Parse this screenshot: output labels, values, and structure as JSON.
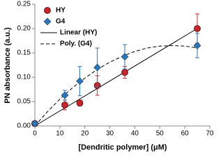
{
  "chart_data": {
    "type": "scatter",
    "x_label": "[Dendritic polymer] (μM)",
    "y_label": "PN absorbance (a.u.)",
    "xlim": [
      0,
      70
    ],
    "xticks": [
      0,
      10,
      20,
      30,
      40,
      50,
      60,
      70
    ],
    "ylim": [
      0,
      0.25
    ],
    "yticks": [
      {
        "value": 0,
        "label": "0.00"
      },
      {
        "value": 0.05,
        "label": "0.05"
      },
      {
        "value": 0.1,
        "label": "0.10"
      },
      {
        "value": 0.15,
        "label": "0.15"
      },
      {
        "value": 0.2,
        "label": "0.20"
      },
      {
        "value": 0.25,
        "label": "0.25"
      }
    ],
    "legend": "upper-left",
    "series": [
      {
        "name": "HY",
        "color": "#c1272d",
        "marker": "circle",
        "x": [
          0,
          12,
          18,
          25,
          36,
          65
        ],
        "values": [
          0.005,
          0.043,
          0.047,
          0.083,
          0.11,
          0.2
        ],
        "errors": [
          0,
          0.01,
          0.006,
          0.02,
          0.012,
          0.03
        ]
      },
      {
        "name": "G4",
        "color": "#2e75b6",
        "marker": "diamond",
        "x": [
          0,
          12,
          18,
          25,
          36,
          65
        ],
        "values": [
          0.005,
          0.063,
          0.092,
          0.12,
          0.142,
          0.165
        ],
        "errors": [
          0,
          0.01,
          0.03,
          0.04,
          0.025,
          0.025
        ]
      },
      {
        "name": "Linear (HY)",
        "color": "#000000",
        "line": "solid",
        "x": [
          0,
          65
        ],
        "values": [
          0,
          0.2
        ]
      },
      {
        "name": "Poly. (G4)",
        "color": "#000000",
        "line": "dashed",
        "x": [
          0,
          5,
          10,
          15,
          20,
          25,
          30,
          35,
          40,
          45,
          50,
          55,
          60,
          65
        ],
        "values": [
          0,
          0.029,
          0.055,
          0.078,
          0.098,
          0.116,
          0.131,
          0.143,
          0.153,
          0.16,
          0.164,
          0.165,
          0.164,
          0.16
        ]
      }
    ]
  }
}
